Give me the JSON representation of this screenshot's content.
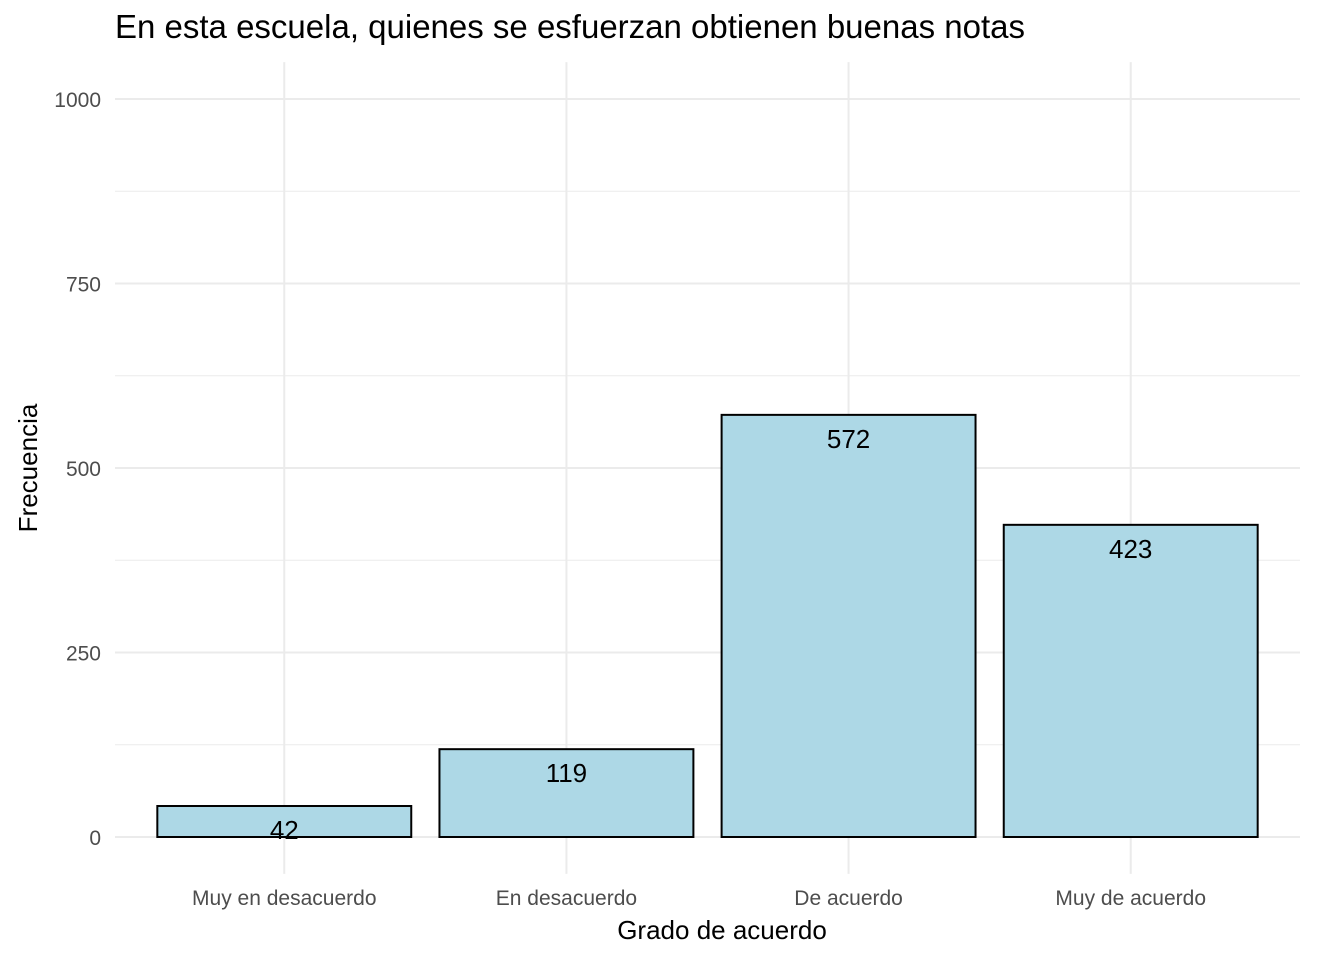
{
  "chart_data": {
    "type": "bar",
    "title": "En esta escuela, quienes se esfuerzan obtienen buenas notas",
    "xlabel": "Grado de acuerdo",
    "ylabel": "Frecuencia",
    "categories": [
      "Muy en desacuerdo",
      "En desacuerdo",
      "De acuerdo",
      "Muy de acuerdo"
    ],
    "values": [
      42,
      119,
      572,
      423
    ],
    "data_labels": [
      "42",
      "119",
      "572",
      "423"
    ],
    "yticks": [
      0,
      250,
      500,
      750,
      1000
    ],
    "ytick_labels": [
      "0",
      "250",
      "500",
      "750",
      "1000"
    ],
    "ylim": [
      -50,
      1050
    ],
    "grid": true,
    "bar_fill": "#add8e6",
    "bar_outline": "#000000",
    "grid_color": "#ebebeb"
  }
}
